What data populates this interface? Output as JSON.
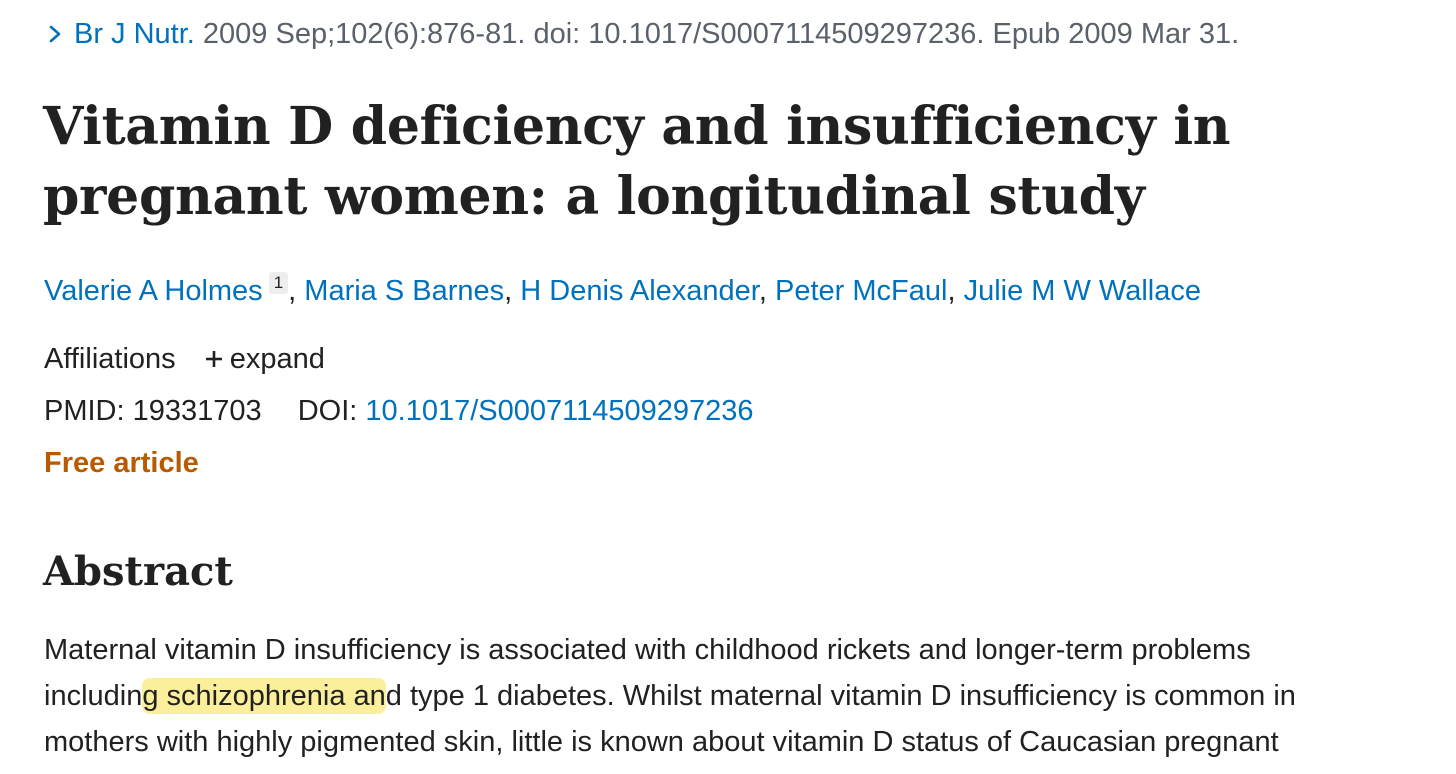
{
  "citation": {
    "journal": "Br J Nutr.",
    "details": "2009 Sep;102(6):876-81. doi: 10.1017/S0007114509297236. Epub 2009 Mar 31."
  },
  "article": {
    "title": "Vitamin D deficiency and insufficiency in pregnant women: a longitudinal study",
    "authors": [
      {
        "name": "Valerie A Holmes",
        "sup": "1"
      },
      {
        "name": "Maria S Barnes"
      },
      {
        "name": "H Denis Alexander"
      },
      {
        "name": "Peter McFaul"
      },
      {
        "name": "Julie M W Wallace"
      }
    ],
    "affiliations_label": "Affiliations",
    "expand_label": "expand",
    "pmid_label": "PMID:",
    "pmid": "19331703",
    "doi_label": "DOI:",
    "doi": "10.1017/S0007114509297236",
    "free_label": "Free article"
  },
  "abstract": {
    "heading": "Abstract",
    "line1": "Maternal vitamin D insufficiency is associated with childhood rickets and longer-term problems",
    "line2_pre": "includin",
    "line2_highlight": "g schizophrenia an",
    "line2_post": "d type 1 diabetes. Whilst maternal vitamin D insufficiency is common in",
    "line3": "mothers with highly pigmented skin, little is known about vitamin D status of Caucasian pregnant",
    "highlight_color": "#fcef9c"
  },
  "colors": {
    "link": "#0071bc",
    "free": "#b75a00",
    "muted": "#5b616b"
  },
  "icons": {
    "chevron": "chevron-right-icon",
    "plus": "plus-icon"
  }
}
